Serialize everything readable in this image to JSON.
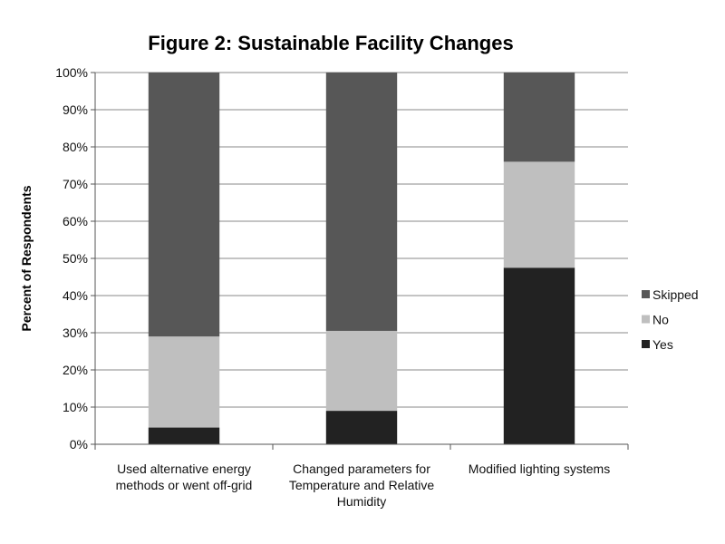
{
  "chart_data": {
    "type": "bar",
    "stacked": true,
    "title": "Figure 2: Sustainable Facility Changes",
    "xlabel": "",
    "ylabel": "Percent of Respondents",
    "ylim": [
      0,
      100
    ],
    "y_ticks": [
      "0%",
      "10%",
      "20%",
      "30%",
      "40%",
      "50%",
      "60%",
      "70%",
      "80%",
      "90%",
      "100%"
    ],
    "grid": true,
    "legend_position": "right",
    "categories": [
      [
        "Used alternative energy",
        "methods or went off-grid"
      ],
      [
        "Changed parameters for",
        "Temperature and Relative",
        "Humidity"
      ],
      [
        "Modified lighting systems"
      ]
    ],
    "series": [
      {
        "name": "Yes",
        "color": "#222222",
        "values": [
          4.5,
          9,
          47.5
        ]
      },
      {
        "name": "No",
        "color": "#bfbfbf",
        "values": [
          24.5,
          21.5,
          28.5
        ]
      },
      {
        "name": "Skipped",
        "color": "#575757",
        "values": [
          71,
          69.5,
          24
        ]
      }
    ]
  }
}
